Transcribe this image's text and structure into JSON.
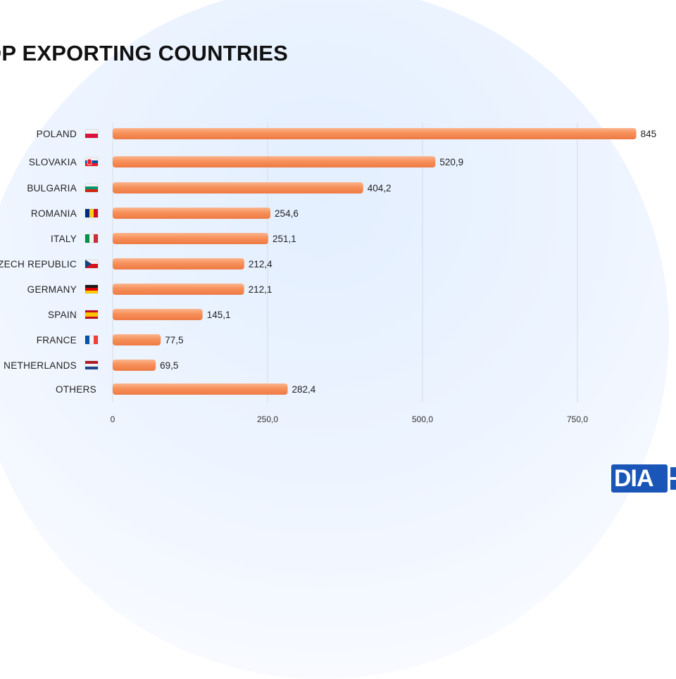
{
  "page": {
    "title": "OP EXPORTING COUNTRIES"
  },
  "chart_data": {
    "type": "bar",
    "orientation": "horizontal",
    "title": "OP EXPORTING COUNTRIES",
    "categories": [
      "POLAND",
      "SLOVAKIA",
      "BULGARIA",
      "ROMANIA",
      "ITALY",
      "ZECH REPUBLIC",
      "GERMANY",
      "SPAIN",
      "FRANCE",
      "NETHERLANDS",
      "OTHERS"
    ],
    "values": [
      845,
      520.9,
      404.2,
      254.6,
      251.1,
      212.4,
      212.1,
      145.1,
      77.5,
      69.5,
      282.4
    ],
    "value_labels": [
      "845",
      "520,9",
      "404,2",
      "254,6",
      "251,1",
      "212,4",
      "212,1",
      "145,1",
      "77,5",
      "69,5",
      "282,4"
    ],
    "flags": [
      "poland",
      "slovakia",
      "bulgaria",
      "romania",
      "italy",
      "czech-republic",
      "germany",
      "spain",
      "france",
      "netherlands",
      ""
    ],
    "xticks": [
      0,
      250,
      500,
      750
    ],
    "xtick_labels": [
      "0",
      "250,0",
      "500,0",
      "750,0"
    ],
    "xlim": [
      0,
      1000
    ],
    "grid": true,
    "bar_color": "#f7905a"
  },
  "logo": {
    "text": "DIA"
  }
}
